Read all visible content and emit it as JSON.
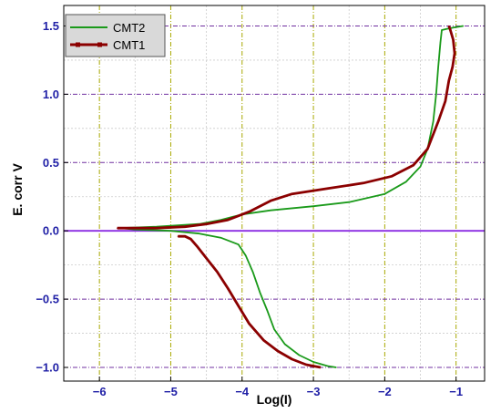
{
  "chart_data": {
    "type": "line",
    "xlabel": "Log(I)",
    "ylabel": "E. corr V",
    "xlim": [
      -6.5,
      -0.6
    ],
    "ylim": [
      -1.1,
      1.65
    ],
    "x_ticks": [
      -6,
      -5,
      -4,
      -3,
      -2,
      -1
    ],
    "x_tick_labels": [
      "−6",
      "−5",
      "−4",
      "−3",
      "−2",
      "−1"
    ],
    "y_ticks": [
      -1.0,
      -0.5,
      0.0,
      0.5,
      1.0,
      1.5
    ],
    "y_tick_labels": [
      "−1.0",
      "−0.5",
      "0.0",
      "0.5",
      "1.0",
      "1.5"
    ],
    "x_minor_grid": [
      -6.5,
      -5.5,
      -4.5,
      -3.5,
      -2.5,
      -1.5
    ],
    "y_minor_grid": [
      -0.75,
      -0.25,
      0.25,
      0.75,
      1.25
    ],
    "grid": true,
    "legend_position": "top-left",
    "reference_line": {
      "y": 0.0,
      "color": "#8a2be2"
    },
    "series": [
      {
        "name": "CMT2",
        "color": "#1a9a1a",
        "marker": "none",
        "cathodic": [
          [
            -2.68,
            -1.0
          ],
          [
            -2.8,
            -0.99
          ],
          [
            -3.0,
            -0.96
          ],
          [
            -3.2,
            -0.91
          ],
          [
            -3.4,
            -0.83
          ],
          [
            -3.55,
            -0.72
          ],
          [
            -3.65,
            -0.58
          ],
          [
            -3.75,
            -0.45
          ],
          [
            -3.85,
            -0.3
          ],
          [
            -3.95,
            -0.18
          ],
          [
            -4.05,
            -0.1
          ],
          [
            -4.3,
            -0.05
          ],
          [
            -4.6,
            -0.02
          ],
          [
            -5.0,
            0.0
          ],
          [
            -5.5,
            0.01
          ],
          [
            -5.7,
            0.02
          ]
        ],
        "anodic": [
          [
            -5.7,
            0.02
          ],
          [
            -5.2,
            0.03
          ],
          [
            -4.6,
            0.05
          ],
          [
            -4.3,
            0.08
          ],
          [
            -4.0,
            0.12
          ],
          [
            -3.6,
            0.15
          ],
          [
            -3.0,
            0.18
          ],
          [
            -2.5,
            0.21
          ],
          [
            -2.0,
            0.27
          ],
          [
            -1.7,
            0.36
          ],
          [
            -1.5,
            0.47
          ],
          [
            -1.4,
            0.6
          ],
          [
            -1.32,
            0.8
          ],
          [
            -1.28,
            1.0
          ],
          [
            -1.25,
            1.2
          ],
          [
            -1.22,
            1.38
          ],
          [
            -1.2,
            1.47
          ],
          [
            -1.12,
            1.48
          ],
          [
            -1.02,
            1.49
          ],
          [
            -0.9,
            1.5
          ]
        ]
      },
      {
        "name": "CMT1",
        "color": "#8b0000",
        "marker": "square",
        "cathodic": [
          [
            -2.9,
            -1.0
          ],
          [
            -3.1,
            -0.98
          ],
          [
            -3.3,
            -0.94
          ],
          [
            -3.5,
            -0.88
          ],
          [
            -3.7,
            -0.8
          ],
          [
            -3.9,
            -0.68
          ],
          [
            -4.05,
            -0.55
          ],
          [
            -4.2,
            -0.42
          ],
          [
            -4.35,
            -0.3
          ],
          [
            -4.5,
            -0.2
          ],
          [
            -4.62,
            -0.12
          ],
          [
            -4.72,
            -0.06
          ],
          [
            -4.8,
            -0.04
          ],
          [
            -4.9,
            -0.04
          ]
        ],
        "anodic": [
          [
            -5.75,
            0.02
          ],
          [
            -5.2,
            0.02
          ],
          [
            -4.8,
            0.03
          ],
          [
            -4.5,
            0.05
          ],
          [
            -4.2,
            0.08
          ],
          [
            -3.9,
            0.14
          ],
          [
            -3.6,
            0.22
          ],
          [
            -3.3,
            0.27
          ],
          [
            -2.8,
            0.31
          ],
          [
            -2.3,
            0.35
          ],
          [
            -1.9,
            0.4
          ],
          [
            -1.6,
            0.48
          ],
          [
            -1.4,
            0.6
          ],
          [
            -1.25,
            0.8
          ],
          [
            -1.15,
            0.95
          ],
          [
            -1.1,
            1.1
          ],
          [
            -1.05,
            1.2
          ],
          [
            -1.02,
            1.3
          ],
          [
            -1.04,
            1.4
          ],
          [
            -1.08,
            1.47
          ],
          [
            -1.1,
            1.5
          ]
        ]
      }
    ]
  }
}
